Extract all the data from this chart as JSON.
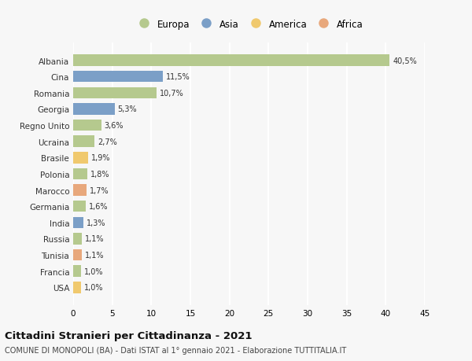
{
  "countries": [
    "Albania",
    "Cina",
    "Romania",
    "Georgia",
    "Regno Unito",
    "Ucraina",
    "Brasile",
    "Polonia",
    "Marocco",
    "Germania",
    "India",
    "Russia",
    "Tunisia",
    "Francia",
    "USA"
  ],
  "values": [
    40.5,
    11.5,
    10.7,
    5.3,
    3.6,
    2.7,
    1.9,
    1.8,
    1.7,
    1.6,
    1.3,
    1.1,
    1.1,
    1.0,
    1.0
  ],
  "labels": [
    "40,5%",
    "11,5%",
    "10,7%",
    "5,3%",
    "3,6%",
    "2,7%",
    "1,9%",
    "1,8%",
    "1,7%",
    "1,6%",
    "1,3%",
    "1,1%",
    "1,1%",
    "1,0%",
    "1,0%"
  ],
  "continents": [
    "Europa",
    "Asia",
    "Europa",
    "Asia",
    "Europa",
    "Europa",
    "America",
    "Europa",
    "Africa",
    "Europa",
    "Asia",
    "Europa",
    "Africa",
    "Europa",
    "America"
  ],
  "continent_colors": {
    "Europa": "#b5c98e",
    "Asia": "#7b9fc7",
    "America": "#f0c96e",
    "Africa": "#e8a87c"
  },
  "legend_entries": [
    "Europa",
    "Asia",
    "America",
    "Africa"
  ],
  "title": "Cittadini Stranieri per Cittadinanza - 2021",
  "subtitle": "COMUNE DI MONOPOLI (BA) - Dati ISTAT al 1° gennaio 2021 - Elaborazione TUTTITALIA.IT",
  "xlim": [
    0,
    45
  ],
  "xticks": [
    0,
    5,
    10,
    15,
    20,
    25,
    30,
    35,
    40,
    45
  ],
  "background_color": "#f7f7f7",
  "grid_color": "#ffffff",
  "bar_height": 0.7
}
